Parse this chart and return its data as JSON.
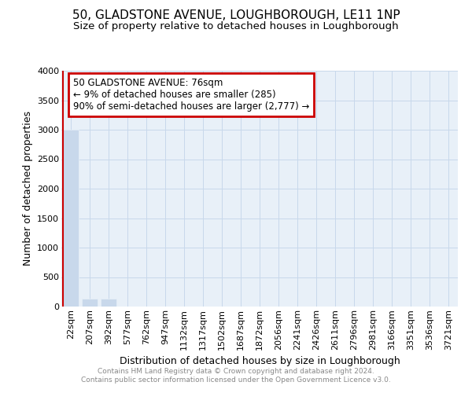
{
  "title": "50, GLADSTONE AVENUE, LOUGHBOROUGH, LE11 1NP",
  "subtitle": "Size of property relative to detached houses in Loughborough",
  "xlabel": "Distribution of detached houses by size in Loughborough",
  "ylabel": "Number of detached properties",
  "annotation_line1": "50 GLADSTONE AVENUE: 76sqm",
  "annotation_line2": "← 9% of detached houses are smaller (285)",
  "annotation_line3": "90% of semi-detached houses are larger (2,777) →",
  "footer_line1": "Contains HM Land Registry data © Crown copyright and database right 2024.",
  "footer_line2": "Contains public sector information licensed under the Open Government Licence v3.0.",
  "categories": [
    "22sqm",
    "207sqm",
    "392sqm",
    "577sqm",
    "762sqm",
    "947sqm",
    "1132sqm",
    "1317sqm",
    "1502sqm",
    "1687sqm",
    "1872sqm",
    "2056sqm",
    "2241sqm",
    "2426sqm",
    "2611sqm",
    "2796sqm",
    "2981sqm",
    "3166sqm",
    "3351sqm",
    "3536sqm",
    "3721sqm"
  ],
  "values": [
    3000,
    130,
    130,
    0,
    0,
    0,
    0,
    0,
    0,
    0,
    0,
    0,
    0,
    0,
    0,
    0,
    0,
    0,
    0,
    0,
    0
  ],
  "bar_color": "#c8d8eb",
  "annotation_box_color": "#cc0000",
  "highlight_bar_color": "#cc0000",
  "ylim": [
    0,
    4000
  ],
  "yticks": [
    0,
    500,
    1000,
    1500,
    2000,
    2500,
    3000,
    3500,
    4000
  ],
  "background_color": "#ffffff",
  "plot_bg_color": "#e8f0f8",
  "grid_color": "#c8d8eb",
  "title_fontsize": 11,
  "subtitle_fontsize": 9.5,
  "axis_label_fontsize": 9,
  "tick_fontsize": 8
}
